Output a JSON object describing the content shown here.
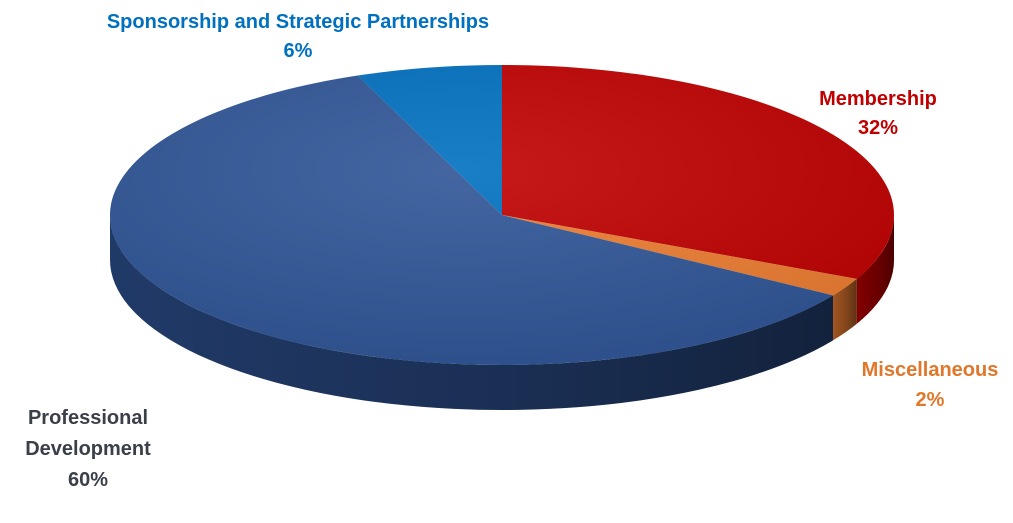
{
  "chart_data": {
    "type": "pie",
    "style": "3d",
    "title": "",
    "slices": [
      {
        "label": "Membership",
        "value": 32,
        "value_label": "32%",
        "color": "#C00000"
      },
      {
        "label": "Miscellaneous",
        "value": 2,
        "value_label": "2%",
        "color": "#ED7D31"
      },
      {
        "label": "Professional Development",
        "value": 60,
        "value_label": "60%",
        "color": "#2F5597"
      },
      {
        "label": "Sponsorship and Strategic Partnerships",
        "value": 6,
        "value_label": "6%",
        "color": "#0070C0"
      }
    ],
    "label_lines": {
      "membership": [
        "Membership",
        "32%"
      ],
      "miscellaneous": [
        "Miscellaneous",
        "2%"
      ],
      "professional_development": [
        "Professional",
        "Development",
        "60%"
      ],
      "sponsorship": [
        "Sponsorship and Strategic Partnerships",
        "6%"
      ]
    },
    "legend": "none"
  }
}
